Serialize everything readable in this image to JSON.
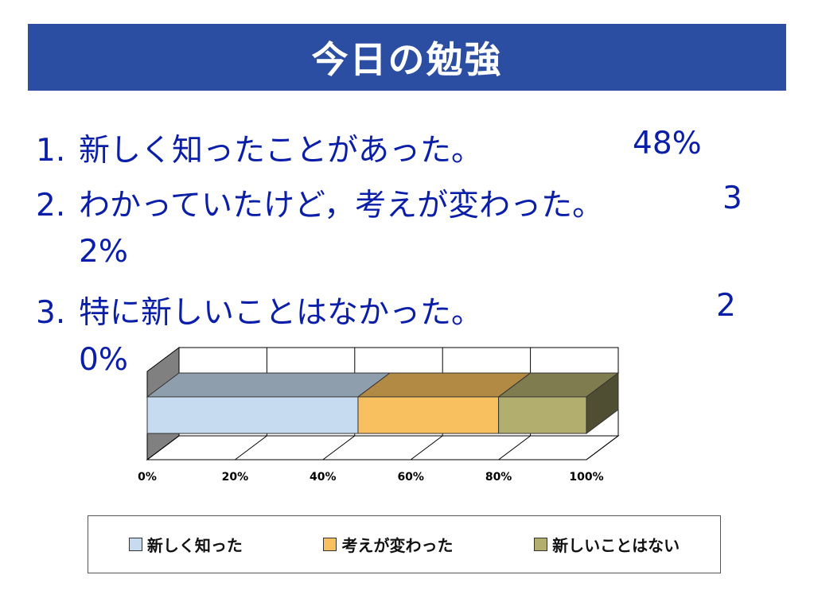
{
  "slide": {
    "title": "今日の勉強",
    "title_bg": "#2b4ea3",
    "items": [
      {
        "num": "1.",
        "text": "新しく知ったことがあった。",
        "pct": "48%"
      },
      {
        "num": "2.",
        "text": "わかっていたけど，考えが変わった。",
        "pct_a": "3",
        "pct_b": "2%"
      },
      {
        "num": "3.",
        "text": "特に新しいことはなかった。",
        "pct_a": "2",
        "pct_b": "0%"
      }
    ]
  },
  "chart_data": {
    "type": "bar",
    "stacked": true,
    "orientation": "horizontal",
    "percent_stacked": true,
    "three_d": true,
    "x_ticks": [
      "0%",
      "20%",
      "40%",
      "60%",
      "80%",
      "100%"
    ],
    "xlim": [
      0,
      100
    ],
    "grid": true,
    "legend_position": "bottom",
    "series": [
      {
        "name": "新しく知った",
        "values": [
          48
        ],
        "color": "#c6dbf0"
      },
      {
        "name": "考えが変わった",
        "values": [
          32
        ],
        "color": "#f9c05f"
      },
      {
        "name": "新しいことはない",
        "values": [
          20
        ],
        "color": "#b1ae6e"
      }
    ]
  }
}
